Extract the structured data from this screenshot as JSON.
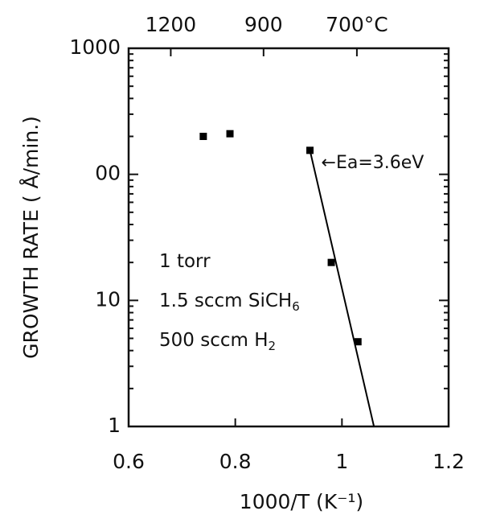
{
  "chart_data": {
    "type": "scatter",
    "xlabel": "1000/T (K⁻¹)",
    "ylabel": "GROWTH RATE ( Å/min.)",
    "x": [
      0.74,
      0.79,
      0.94,
      0.98,
      1.03
    ],
    "values": [
      200,
      210,
      155,
      20,
      4.7
    ],
    "color": "#000000",
    "fit": {
      "x": [
        0.94,
        1.06
      ],
      "values": [
        155,
        1
      ],
      "label": "←Ea=3.6eV"
    },
    "xlim": [
      0.6,
      1.2
    ],
    "xticks": [
      0.6,
      0.8,
      {
        "value": 1.0,
        "label": "1"
      },
      1.2
    ],
    "ylim": [
      1,
      1000
    ],
    "yticks": [
      1,
      10,
      {
        "value": 100,
        "label": "00"
      },
      1000
    ],
    "ylog": true,
    "top_ticks": [
      {
        "value": 0.679,
        "label": "1200"
      },
      {
        "value": 0.853,
        "label": "900"
      },
      {
        "value": 1.028,
        "label": "700°C"
      }
    ],
    "conditions": [
      {
        "text": "1 torr"
      },
      {
        "text": "1.5 sccm SiCH",
        "sub": "6"
      },
      {
        "text": "500 sccm H",
        "sub": "2"
      }
    ]
  }
}
